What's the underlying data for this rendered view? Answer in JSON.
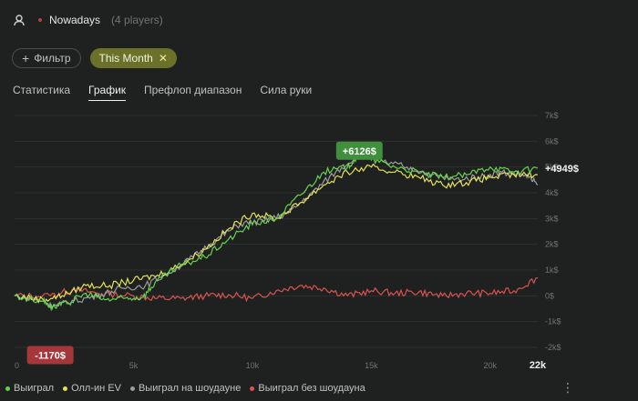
{
  "header": {
    "name": "Nowadays",
    "players": "(4 players)"
  },
  "filters": {
    "filter_label": "Фильтр",
    "month_label": "This Month"
  },
  "tabs": [
    "Статистика",
    "График",
    "Префлоп диапазон",
    "Сила руки"
  ],
  "chart_data": {
    "type": "line",
    "x_ticks": [
      "0",
      "5k",
      "10k",
      "15k",
      "20k",
      "22k"
    ],
    "y_ticks": [
      "7k$",
      "6k$",
      "5k$",
      "4k$",
      "3k$",
      "2k$",
      "1k$",
      "0$",
      "-1k$",
      "-2k$"
    ],
    "ylim": [
      -2000,
      7000
    ],
    "xlim": [
      0,
      22000
    ],
    "max_label": "+6126$",
    "min_label": "-1170$",
    "final_label": "+4949$",
    "series": [
      {
        "name": "Выиграл",
        "color": "#67d24f",
        "points": [
          [
            0,
            0
          ],
          [
            1200,
            -200
          ],
          [
            1600,
            -450
          ],
          [
            2200,
            -300
          ],
          [
            3000,
            100
          ],
          [
            3800,
            -150
          ],
          [
            4600,
            -100
          ],
          [
            5400,
            -50
          ],
          [
            6000,
            600
          ],
          [
            7000,
            1200
          ],
          [
            8000,
            1500
          ],
          [
            9000,
            2200
          ],
          [
            10000,
            2800
          ],
          [
            11000,
            3000
          ],
          [
            12000,
            3900
          ],
          [
            13000,
            4800
          ],
          [
            14000,
            5000
          ],
          [
            14500,
            5500
          ],
          [
            15000,
            5300
          ],
          [
            16000,
            5000
          ],
          [
            17000,
            4800
          ],
          [
            18000,
            4600
          ],
          [
            19000,
            4700
          ],
          [
            20000,
            5000
          ],
          [
            21000,
            4800
          ],
          [
            22000,
            4950
          ]
        ]
      },
      {
        "name": "Олл-ин EV",
        "color": "#e3e05a",
        "points": [
          [
            0,
            0
          ],
          [
            1200,
            -150
          ],
          [
            2000,
            0
          ],
          [
            3000,
            400
          ],
          [
            4000,
            400
          ],
          [
            5000,
            600
          ],
          [
            6000,
            800
          ],
          [
            7000,
            1200
          ],
          [
            8000,
            1800
          ],
          [
            9000,
            2600
          ],
          [
            10000,
            3200
          ],
          [
            11000,
            3000
          ],
          [
            12000,
            3600
          ],
          [
            13000,
            4300
          ],
          [
            14000,
            4800
          ],
          [
            15000,
            5000
          ],
          [
            16000,
            4800
          ],
          [
            17000,
            4600
          ],
          [
            18000,
            4300
          ],
          [
            19000,
            4400
          ],
          [
            20000,
            4600
          ],
          [
            21000,
            4700
          ],
          [
            22000,
            4700
          ]
        ]
      },
      {
        "name": "Выиграл на шоудауне",
        "color": "#9b9d9b",
        "points": [
          [
            0,
            0
          ],
          [
            1200,
            -200
          ],
          [
            1600,
            -400
          ],
          [
            2500,
            -200
          ],
          [
            3500,
            0
          ],
          [
            4500,
            300
          ],
          [
            5500,
            400
          ],
          [
            6500,
            900
          ],
          [
            7500,
            1500
          ],
          [
            8500,
            2200
          ],
          [
            9500,
            2800
          ],
          [
            10500,
            2900
          ],
          [
            11500,
            3200
          ],
          [
            12500,
            4000
          ],
          [
            13500,
            4800
          ],
          [
            14500,
            5500
          ],
          [
            15500,
            5200
          ],
          [
            16500,
            5000
          ],
          [
            17500,
            4700
          ],
          [
            18500,
            4500
          ],
          [
            19500,
            4600
          ],
          [
            20500,
            4800
          ],
          [
            21500,
            4700
          ],
          [
            22000,
            4300
          ]
        ]
      },
      {
        "name": "Выиграл без шоудауна",
        "color": "#d9534f",
        "points": [
          [
            0,
            0
          ],
          [
            1500,
            0
          ],
          [
            2500,
            250
          ],
          [
            3500,
            100
          ],
          [
            5000,
            0
          ],
          [
            6000,
            -100
          ],
          [
            7000,
            -100
          ],
          [
            8000,
            0
          ],
          [
            9000,
            50
          ],
          [
            10000,
            -100
          ],
          [
            11000,
            200
          ],
          [
            12000,
            400
          ],
          [
            13000,
            300
          ],
          [
            14000,
            0
          ],
          [
            15000,
            200
          ],
          [
            16000,
            100
          ],
          [
            17000,
            150
          ],
          [
            18000,
            0
          ],
          [
            19000,
            100
          ],
          [
            20000,
            100
          ],
          [
            21000,
            200
          ],
          [
            22000,
            700
          ]
        ]
      }
    ]
  },
  "legend": [
    "Выиграл",
    "Олл-ин EV",
    "Выиграл на шоудауне",
    "Выиграл без шоудауна"
  ]
}
